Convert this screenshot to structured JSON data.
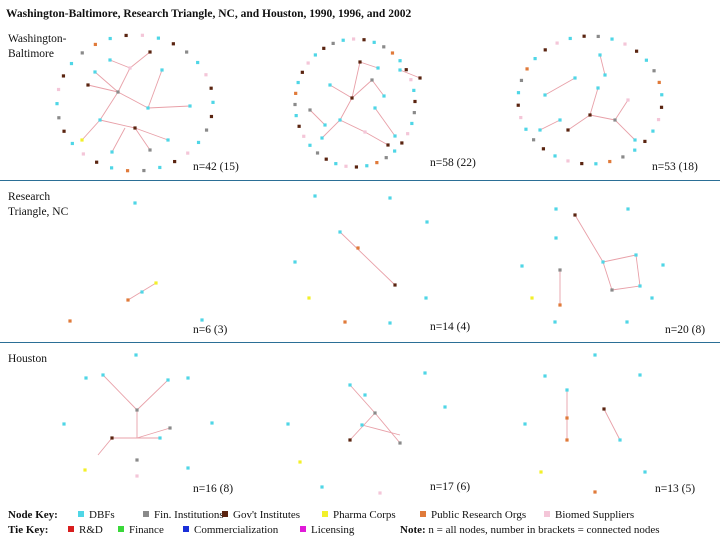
{
  "title": "Washington-Baltimore, Research Triangle, NC, and Houston, 1990, 1996, and 2002",
  "rows": [
    {
      "label_lines": [
        "Washington-",
        "Baltimore"
      ],
      "panels": [
        {
          "n": "n=42 (15)"
        },
        {
          "n": "n=58 (22)"
        },
        {
          "n": "n=53 (18)"
        }
      ]
    },
    {
      "label_lines": [
        "Research",
        "Triangle, NC"
      ],
      "panels": [
        {
          "n": "n=6 (3)"
        },
        {
          "n": "n=14 (4)"
        },
        {
          "n": "n=20 (8)"
        }
      ]
    },
    {
      "label_lines": [
        "Houston"
      ],
      "panels": [
        {
          "n": "n=16 (8)"
        },
        {
          "n": "n=17 (6)"
        },
        {
          "n": "n=13 (5)"
        }
      ]
    }
  ],
  "node_key": {
    "heading": "Node Key:",
    "items": [
      {
        "label": "DBFs",
        "color": "#4fd6e6"
      },
      {
        "label": "Fin. Institutions",
        "color": "#8a8a8a"
      },
      {
        "label": "Gov't Institutes",
        "color": "#5a2410"
      },
      {
        "label": "Pharma Corps",
        "color": "#f2f02a"
      },
      {
        "label": "Public Research Orgs",
        "color": "#e07a3a"
      },
      {
        "label": "Biomed Suppliers",
        "color": "#f4c6d8"
      }
    ]
  },
  "tie_key": {
    "heading": "Tie Key:",
    "items": [
      {
        "label": "R&D",
        "color": "#d81e1e"
      },
      {
        "label": "Finance",
        "color": "#3ad83a"
      },
      {
        "label": "Commercialization",
        "color": "#1a2fd8"
      },
      {
        "label": "Licensing",
        "color": "#e01ad8"
      }
    ]
  },
  "note": {
    "bold": "Note:",
    "text": " n = all nodes, number in brackets = connected nodes"
  }
}
